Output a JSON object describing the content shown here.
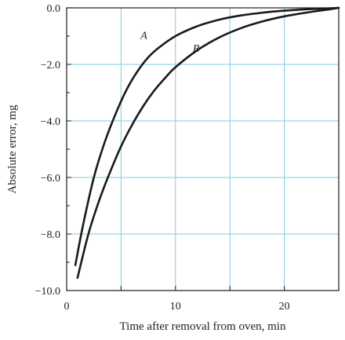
{
  "chart_data": {
    "type": "line",
    "title": "",
    "xlabel": "Time after removal from oven, min",
    "ylabel": "Absolute error, mg",
    "xlim": [
      0,
      25
    ],
    "ylim": [
      -10,
      0
    ],
    "x_ticks": [
      0,
      10,
      20
    ],
    "x_tick_labels": [
      "0",
      "10",
      "20"
    ],
    "y_ticks": [
      0,
      -2,
      -4,
      -6,
      -8,
      -10
    ],
    "y_tick_labels": [
      "0.0",
      "−2.0",
      "−4.0",
      "−6.0",
      "−8.0",
      "−10.0"
    ],
    "grid": true,
    "grid_color": "#7ecbe6",
    "line_color": "#1a1a1a",
    "series": [
      {
        "name": "A",
        "x": [
          0.8,
          1.5,
          2.5,
          3.5,
          4.5,
          5.5,
          6.5,
          7.5,
          8.5,
          10,
          12,
          14,
          16,
          18,
          20,
          22,
          24,
          25
        ],
        "y": [
          -9.1,
          -7.7,
          -6.0,
          -4.75,
          -3.75,
          -2.9,
          -2.25,
          -1.75,
          -1.4,
          -1.0,
          -0.65,
          -0.42,
          -0.27,
          -0.17,
          -0.1,
          -0.05,
          -0.02,
          0.0
        ]
      },
      {
        "name": "B",
        "x": [
          1.0,
          2.0,
          3.0,
          4.0,
          5.0,
          6.0,
          7.0,
          8.0,
          9.0,
          10,
          12,
          14,
          16,
          18,
          20,
          22,
          24,
          25
        ],
        "y": [
          -9.55,
          -8.0,
          -6.8,
          -5.8,
          -4.9,
          -4.15,
          -3.5,
          -2.95,
          -2.5,
          -2.1,
          -1.5,
          -1.05,
          -0.72,
          -0.48,
          -0.3,
          -0.17,
          -0.06,
          0.0
        ]
      }
    ],
    "annotations": [
      {
        "text": "A",
        "x": 7.1,
        "y": -1.1
      },
      {
        "text": "B",
        "x": 11.9,
        "y": -1.55
      }
    ]
  }
}
